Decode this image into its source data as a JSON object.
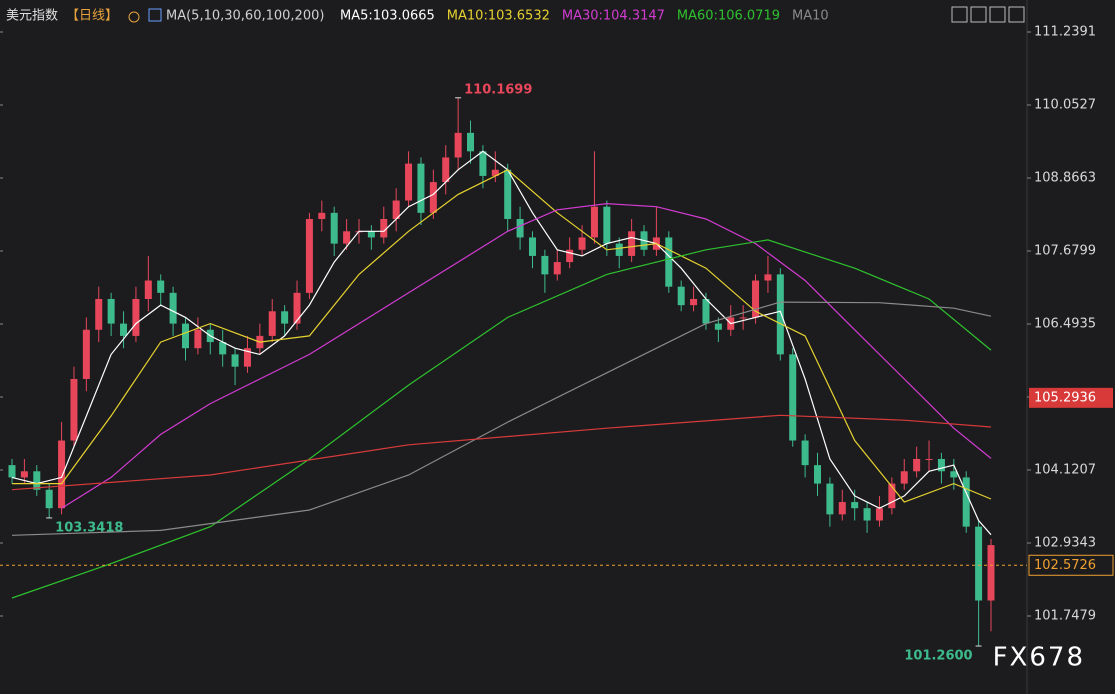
{
  "chart_data": {
    "type": "candlestick",
    "title": "美元指数",
    "period": "【日线】",
    "ma_label": "MA(5,10,30,60,100,200)",
    "watermark": "FX678",
    "up_color": "#e8475b",
    "down_color": "#3dbb8c",
    "ylim": [
      100.708,
      111.304
    ],
    "yticks": [
      101.7479,
      102.9343,
      104.1207,
      105.3071,
      106.4935,
      107.6799,
      108.8663,
      110.0527,
      111.2391
    ],
    "current_price": 102.5726,
    "current_color": "#f0a030",
    "ma200_price": 105.2936,
    "annotations": [
      {
        "label": "110.1699",
        "value": 110.1699,
        "color": "#e8475b"
      },
      {
        "label": "103.3418",
        "value": 103.3418,
        "color": "#3dbb8c"
      },
      {
        "label": "101.2600",
        "value": 101.26,
        "color": "#3dbb8c"
      }
    ],
    "candles": [
      [
        104.2,
        104.3,
        103.9,
        104.0
      ],
      [
        104.0,
        104.3,
        103.9,
        104.1
      ],
      [
        104.1,
        104.2,
        103.7,
        103.8
      ],
      [
        103.8,
        103.9,
        103.3418,
        103.5
      ],
      [
        103.5,
        104.9,
        103.4,
        104.6
      ],
      [
        104.6,
        105.8,
        104.5,
        105.6
      ],
      [
        105.6,
        106.6,
        105.4,
        106.4
      ],
      [
        106.4,
        107.1,
        106.2,
        106.9
      ],
      [
        106.9,
        107.0,
        106.3,
        106.5
      ],
      [
        106.5,
        106.7,
        106.1,
        106.3
      ],
      [
        106.3,
        107.1,
        106.2,
        106.9
      ],
      [
        106.9,
        107.6,
        106.7,
        107.2
      ],
      [
        107.2,
        107.3,
        106.8,
        107.0
      ],
      [
        107.0,
        107.1,
        106.3,
        106.5
      ],
      [
        106.5,
        106.6,
        105.9,
        106.1
      ],
      [
        106.1,
        106.6,
        106.0,
        106.4
      ],
      [
        106.4,
        106.5,
        106.0,
        106.2
      ],
      [
        106.2,
        106.4,
        105.8,
        106.0
      ],
      [
        106.0,
        106.1,
        105.5,
        105.8
      ],
      [
        105.8,
        106.3,
        105.7,
        106.1
      ],
      [
        106.1,
        106.5,
        106.0,
        106.3
      ],
      [
        106.3,
        106.9,
        106.2,
        106.7
      ],
      [
        106.7,
        106.8,
        106.3,
        106.5
      ],
      [
        106.5,
        107.2,
        106.4,
        107.0
      ],
      [
        107.0,
        108.3,
        106.9,
        108.2
      ],
      [
        108.2,
        108.5,
        108.0,
        108.3
      ],
      [
        108.3,
        108.4,
        107.6,
        107.8
      ],
      [
        107.8,
        108.2,
        107.7,
        108.0
      ],
      [
        108.0,
        108.2,
        107.8,
        108.0
      ],
      [
        108.0,
        108.1,
        107.7,
        107.9
      ],
      [
        107.9,
        108.4,
        107.8,
        108.2
      ],
      [
        108.2,
        108.7,
        108.0,
        108.5
      ],
      [
        108.5,
        109.3,
        108.4,
        109.1
      ],
      [
        109.1,
        109.2,
        108.1,
        108.3
      ],
      [
        108.3,
        109.0,
        108.2,
        108.8
      ],
      [
        108.8,
        109.4,
        108.6,
        109.2
      ],
      [
        109.2,
        110.1699,
        109.0,
        109.6
      ],
      [
        109.6,
        109.8,
        109.1,
        109.3
      ],
      [
        109.3,
        109.4,
        108.7,
        108.9
      ],
      [
        108.9,
        109.3,
        108.8,
        109.0
      ],
      [
        109.0,
        109.1,
        108.0,
        108.2
      ],
      [
        108.2,
        108.4,
        107.7,
        107.9
      ],
      [
        107.9,
        108.0,
        107.4,
        107.6
      ],
      [
        107.6,
        107.7,
        107.0,
        107.3
      ],
      [
        107.3,
        107.7,
        107.2,
        107.5
      ],
      [
        107.5,
        107.9,
        107.4,
        107.7
      ],
      [
        107.7,
        108.1,
        107.6,
        107.9
      ],
      [
        107.9,
        109.3,
        107.8,
        108.4
      ],
      [
        108.4,
        108.5,
        107.6,
        107.8
      ],
      [
        107.8,
        107.9,
        107.4,
        107.6
      ],
      [
        107.6,
        108.2,
        107.5,
        108.0
      ],
      [
        108.0,
        108.1,
        107.6,
        107.7
      ],
      [
        107.7,
        108.4,
        107.6,
        107.9
      ],
      [
        107.9,
        108.0,
        107.0,
        107.1
      ],
      [
        107.1,
        107.2,
        106.7,
        106.8
      ],
      [
        106.8,
        107.1,
        106.7,
        106.9
      ],
      [
        106.9,
        107.0,
        106.4,
        106.5
      ],
      [
        106.5,
        106.6,
        106.2,
        106.4
      ],
      [
        106.4,
        106.8,
        106.3,
        106.6
      ],
      [
        106.6,
        106.8,
        106.4,
        106.6
      ],
      [
        106.6,
        107.3,
        106.5,
        107.2
      ],
      [
        107.2,
        107.6,
        107.0,
        107.3
      ],
      [
        107.3,
        107.4,
        105.9,
        106.0
      ],
      [
        106.0,
        106.1,
        104.5,
        104.6
      ],
      [
        104.6,
        104.7,
        104.0,
        104.2
      ],
      [
        104.2,
        104.4,
        103.7,
        103.9
      ],
      [
        103.9,
        104.0,
        103.2,
        103.4
      ],
      [
        103.4,
        103.8,
        103.3,
        103.6
      ],
      [
        103.6,
        103.8,
        103.3,
        103.5
      ],
      [
        103.5,
        103.6,
        103.1,
        103.3
      ],
      [
        103.3,
        103.7,
        103.2,
        103.5
      ],
      [
        103.5,
        104.0,
        103.4,
        103.9
      ],
      [
        103.9,
        104.3,
        103.8,
        104.1
      ],
      [
        104.1,
        104.5,
        104.0,
        104.3
      ],
      [
        104.3,
        104.6,
        104.1,
        104.3
      ],
      [
        104.3,
        104.4,
        103.9,
        104.1
      ],
      [
        104.1,
        104.3,
        103.8,
        104.0
      ],
      [
        104.0,
        104.1,
        103.1,
        103.2
      ],
      [
        103.2,
        103.3,
        101.26,
        102.0
      ],
      [
        102.0,
        103.0,
        101.5,
        102.9
      ]
    ],
    "series": [
      {
        "name": "MA5:103.0665",
        "color": "#ffffff",
        "x": [
          0,
          2,
          4,
          6,
          8,
          10,
          12,
          14,
          16,
          18,
          20,
          22,
          24,
          26,
          28,
          30,
          32,
          34,
          36,
          38,
          40,
          42,
          44,
          46,
          48,
          50,
          52,
          54,
          56,
          58,
          60,
          62,
          64,
          66,
          68,
          70,
          72,
          74,
          76,
          78,
          79
        ],
        "values": [
          104.0,
          103.9,
          104.0,
          105.0,
          106.0,
          106.5,
          106.8,
          106.6,
          106.3,
          106.1,
          106.0,
          106.3,
          106.8,
          107.5,
          108.0,
          108.0,
          108.4,
          108.6,
          109.0,
          109.3,
          109.0,
          108.3,
          107.7,
          107.6,
          107.8,
          107.9,
          107.8,
          107.4,
          106.9,
          106.5,
          106.6,
          106.7,
          105.6,
          104.3,
          103.7,
          103.5,
          103.7,
          104.1,
          104.2,
          103.3,
          103.07
        ]
      },
      {
        "name": "MA10:103.6532",
        "color": "#e6d230",
        "x": [
          0,
          4,
          8,
          12,
          16,
          20,
          24,
          28,
          32,
          36,
          40,
          44,
          48,
          52,
          56,
          60,
          64,
          68,
          72,
          76,
          79
        ],
        "values": [
          103.9,
          103.9,
          105.0,
          106.2,
          106.5,
          106.2,
          106.3,
          107.3,
          108.0,
          108.6,
          109.0,
          108.3,
          107.7,
          107.8,
          107.4,
          106.7,
          106.3,
          104.6,
          103.6,
          103.9,
          103.65
        ]
      },
      {
        "name": "MA30:104.3147",
        "color": "#d23cd2",
        "x": [
          4,
          8,
          12,
          16,
          20,
          24,
          28,
          32,
          36,
          40,
          44,
          48,
          52,
          56,
          60,
          64,
          68,
          72,
          76,
          79
        ],
        "values": [
          103.5,
          104.0,
          104.7,
          105.2,
          105.6,
          106.0,
          106.5,
          107.0,
          107.5,
          108.0,
          108.35,
          108.45,
          108.4,
          108.2,
          107.8,
          107.2,
          106.4,
          105.6,
          104.8,
          104.31
        ]
      },
      {
        "name": "MA60:106.0719",
        "color": "#2ec12e",
        "x": [
          0,
          8,
          16,
          24,
          32,
          40,
          48,
          56,
          61,
          68,
          74,
          79
        ],
        "values": [
          102.04,
          102.6,
          103.2,
          104.3,
          105.5,
          106.6,
          107.3,
          107.7,
          107.86,
          107.4,
          106.9,
          106.07
        ]
      },
      {
        "name": "MA10",
        "color": "#8a8a8a",
        "x": [
          0,
          12,
          24,
          32,
          40,
          48,
          56,
          62,
          70,
          76,
          79
        ],
        "values": [
          103.06,
          103.14,
          103.47,
          104.04,
          104.9,
          105.7,
          106.5,
          106.85,
          106.84,
          106.75,
          106.62
        ]
      },
      {
        "color": "#d83a3a",
        "x": [
          0,
          16,
          32,
          48,
          62,
          72,
          79
        ],
        "values": [
          103.8,
          104.04,
          104.53,
          104.8,
          105.01,
          104.93,
          104.82
        ]
      }
    ]
  }
}
